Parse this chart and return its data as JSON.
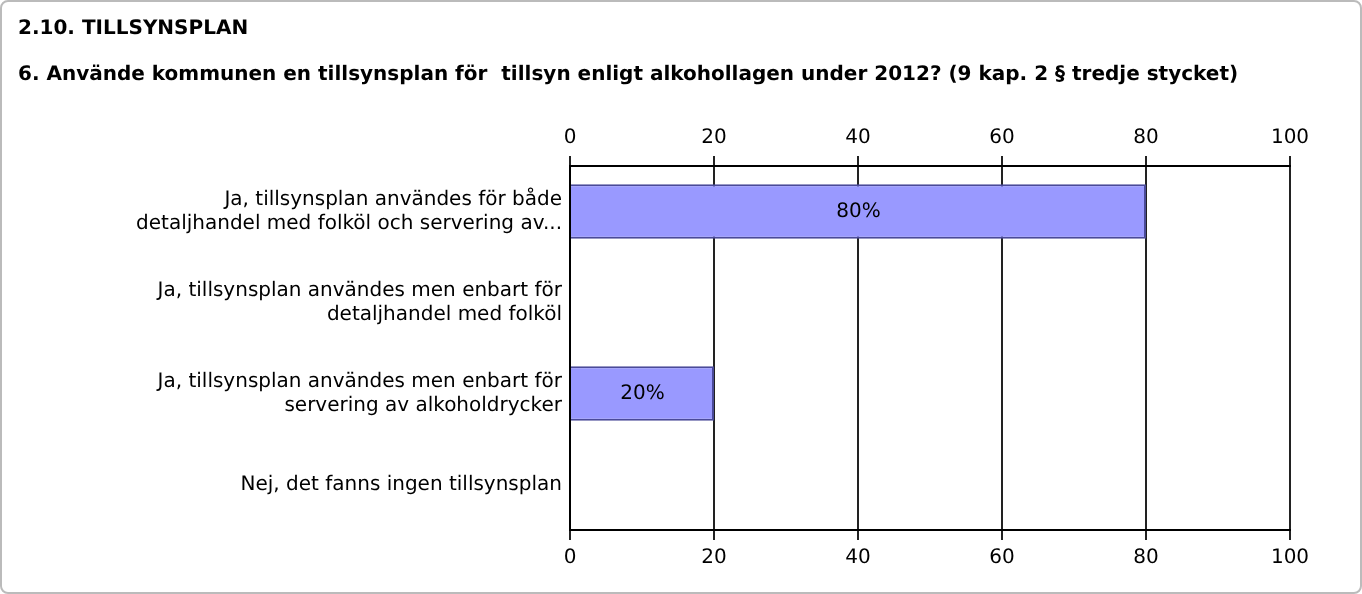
{
  "chart_data": {
    "type": "bar",
    "orientation": "horizontal",
    "title": "2.10. TILLSYNSPLAN",
    "subtitle": "6. Använde kommunen en tillsynsplan för  tillsyn enligt alkohollagen under 2012? (9 kap. 2 § tredje stycket)",
    "categories": [
      "Ja, tillsynsplan användes för både detaljhandel med folköl och servering av...",
      "Ja, tillsynsplan användes men enbart för detaljhandel med folköl",
      "Ja, tillsynsplan användes men enbart för servering av alkoholdrycker",
      "Nej, det fanns ingen tillsynsplan"
    ],
    "values": [
      80,
      0,
      20,
      0
    ],
    "value_labels": [
      "80%",
      null,
      "20%",
      null
    ],
    "color": "#9999ff",
    "xlim": [
      0,
      100
    ],
    "xticks": [
      0,
      20,
      40,
      60,
      80,
      100
    ],
    "x2lim": [
      0,
      100
    ],
    "x2ticks": [
      0,
      20,
      40,
      60,
      80,
      100
    ],
    "grid": "x"
  }
}
